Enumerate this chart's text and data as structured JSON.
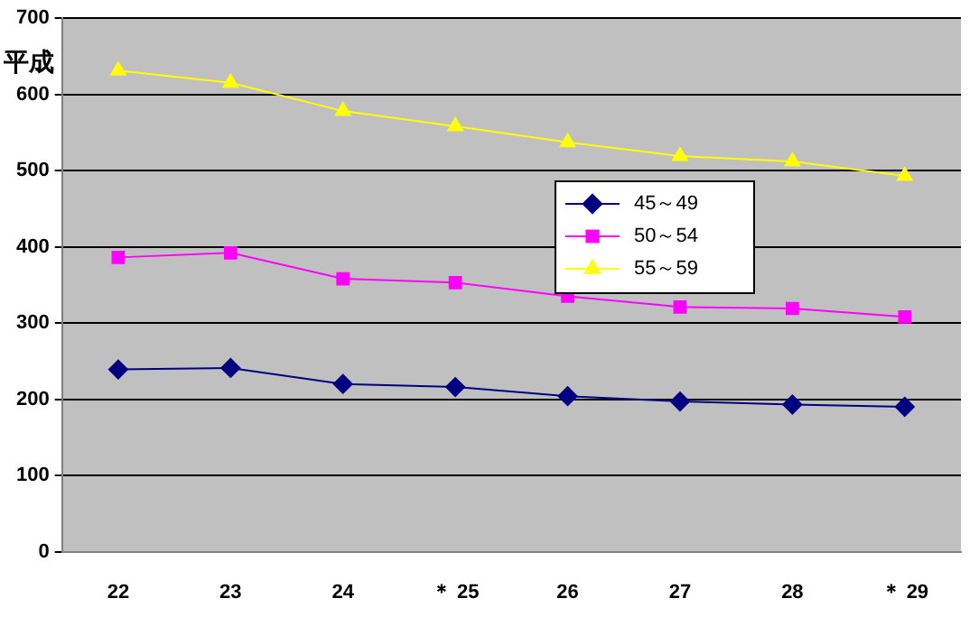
{
  "chart_data": {
    "type": "line",
    "ylabel": "平成",
    "categories": [
      "22",
      "23",
      "24",
      "＊ 25",
      "26",
      "27",
      "28",
      "＊ 29"
    ],
    "series": [
      {
        "name": "45～49",
        "color": "#000080",
        "marker": "diamond",
        "values": [
          239,
          241,
          220,
          216,
          204,
          197,
          193,
          190
        ]
      },
      {
        "name": "50～54",
        "color": "#ff00ff",
        "marker": "square",
        "values": [
          386,
          392,
          358,
          353,
          335,
          321,
          319,
          308
        ]
      },
      {
        "name": "55～59",
        "color": "#ffff00",
        "marker": "triangle",
        "values": [
          631,
          615,
          578,
          558,
          537,
          519,
          512,
          493
        ]
      }
    ],
    "ylim": [
      0,
      700
    ],
    "yticks": [
      0,
      100,
      200,
      300,
      400,
      500,
      600,
      700
    ],
    "grid": "y",
    "legend": "right"
  }
}
